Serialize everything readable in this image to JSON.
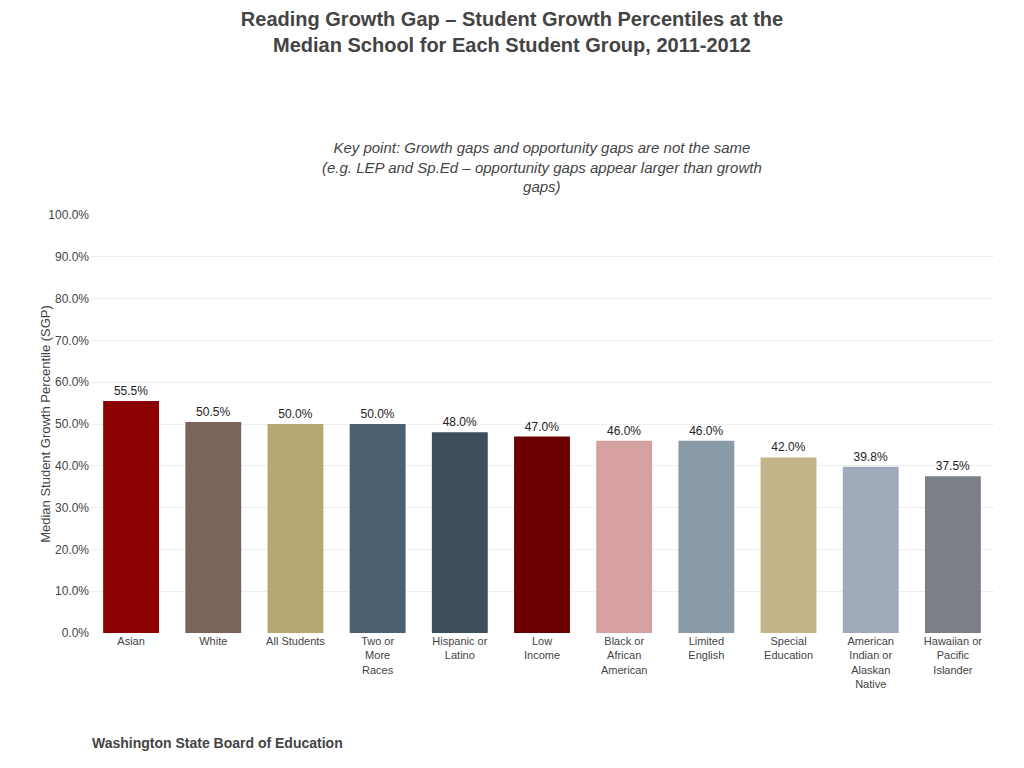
{
  "chart_data": {
    "type": "bar",
    "title": "Reading Growth Gap – Student Growth Percentiles at the\nMedian School for Each Student Group, 2011-2012",
    "subtitle": "Key point: Growth gaps and opportunity gaps are not the same\n(e.g. LEP and Sp.Ed – opportunity gaps appear larger than growth\ngaps)",
    "annotations": [
      "Washington State Board of Education"
    ],
    "categories": [
      "Asian",
      "White",
      "All Students",
      "Two or\nMore\nRaces",
      "Hispanic or\nLatino",
      "Low\nIncome",
      "Black or\nAfrican\nAmerican",
      "Limited\nEnglish",
      "Special\nEducation",
      "American\nIndian or\nAlaskan\nNative",
      "Hawaiian or\nPacific\nIslander"
    ],
    "values": [
      55.5,
      50.5,
      50.0,
      50.0,
      48.0,
      47.0,
      46.0,
      46.0,
      42.0,
      39.8,
      37.5
    ],
    "value_labels": [
      "55.5%",
      "50.5%",
      "50.0%",
      "50.0%",
      "48.0%",
      "47.0%",
      "46.0%",
      "46.0%",
      "42.0%",
      "39.8%",
      "37.5%"
    ],
    "data_labels": true,
    "colors": [
      "#8B0000",
      "#7B6458",
      "#B5A870",
      "#4D6070",
      "#3D4F5C",
      "#6B0000",
      "#D4A0A0",
      "#8A9BA8",
      "#C4B48A",
      "#A0AABB",
      "#7A8085"
    ],
    "ylabel": "Median Student Growth Percentile (SGP)",
    "ylim": [
      0,
      100
    ],
    "yticks": [
      {
        "value": 0,
        "label": "0.0%"
      },
      {
        "value": 10,
        "label": "10.0%"
      },
      {
        "value": 20,
        "label": "20.0%"
      },
      {
        "value": 30,
        "label": "30.0%"
      },
      {
        "value": 40,
        "label": "40.0%"
      },
      {
        "value": 50,
        "label": "50.0%"
      },
      {
        "value": 60,
        "label": "60.0%"
      },
      {
        "value": 70,
        "label": "70.0%"
      },
      {
        "value": 80,
        "label": "80.0%"
      },
      {
        "value": 90,
        "label": "90.0%"
      },
      {
        "value": 100,
        "label": "100.0%"
      }
    ],
    "grid": true
  }
}
